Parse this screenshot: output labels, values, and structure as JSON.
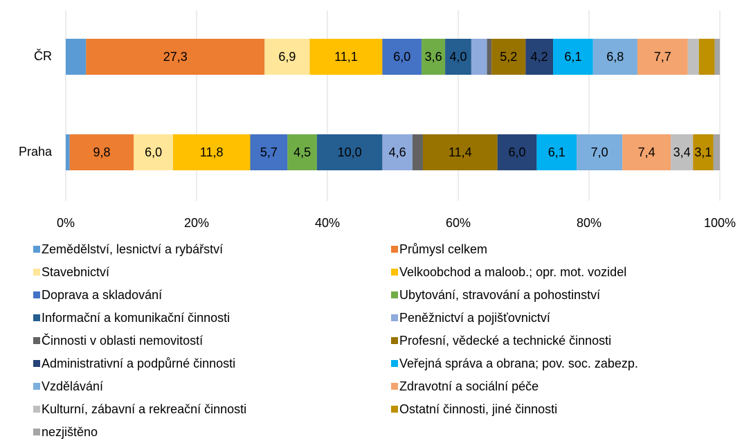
{
  "chart_data": {
    "type": "stacked_barh",
    "categories": [
      "ČR",
      "Praha"
    ],
    "series": [
      {
        "name": "Zemědělství, lesnictví a rybářství",
        "color": "#5b9bd5",
        "values": [
          3.1,
          0.6
        ],
        "value_labels": [
          null,
          null
        ]
      },
      {
        "name": "Průmysl celkem",
        "color": "#ed7d31",
        "values": [
          27.3,
          9.8
        ],
        "value_labels": [
          "27,3",
          "9,8"
        ]
      },
      {
        "name": "Stavebnictví",
        "color": "#ffe699",
        "values": [
          6.9,
          6.0
        ],
        "value_labels": [
          "6,9",
          "6,0"
        ]
      },
      {
        "name": "Velkoobchod a maloob.; opr. mot. vozidel",
        "color": "#ffc000",
        "values": [
          11.1,
          11.8
        ],
        "value_labels": [
          "11,1",
          "11,8"
        ]
      },
      {
        "name": "Doprava a skladování",
        "color": "#4472c4",
        "values": [
          6.0,
          5.7
        ],
        "value_labels": [
          "6,0",
          "5,7"
        ]
      },
      {
        "name": "Ubytování, stravování a pohostinství",
        "color": "#70ad47",
        "values": [
          3.6,
          4.5
        ],
        "value_labels": [
          "3,6",
          "4,5"
        ]
      },
      {
        "name": "Informační a komunikační činnosti",
        "color": "#255e91",
        "values": [
          4.0,
          10.0
        ],
        "value_labels": [
          "4,0",
          "10,0"
        ]
      },
      {
        "name": "Peněžnictví a pojišťovnictví",
        "color": "#8faadc",
        "values": [
          2.4,
          4.6
        ],
        "value_labels": [
          null,
          "4,6"
        ]
      },
      {
        "name": "Činnosti v oblasti nemovitostí",
        "color": "#636363",
        "values": [
          0.7,
          1.6
        ],
        "value_labels": [
          null,
          null
        ]
      },
      {
        "name": "Profesní, vědecké a technické činnosti",
        "color": "#997300",
        "values": [
          5.2,
          11.4
        ],
        "value_labels": [
          "5,2",
          "11,4"
        ]
      },
      {
        "name": "Administrativní a podpůrné činnosti",
        "color": "#264478",
        "values": [
          4.2,
          6.0
        ],
        "value_labels": [
          "4,2",
          "6,0"
        ]
      },
      {
        "name": "Veřejná správa a obrana; pov. soc. zabezp.",
        "color": "#00b0f0",
        "values": [
          6.1,
          6.1
        ],
        "value_labels": [
          "6,1",
          "6,1"
        ]
      },
      {
        "name": "Vzdělávání",
        "color": "#7cafdd",
        "values": [
          6.8,
          7.0
        ],
        "value_labels": [
          "6,8",
          "7,0"
        ]
      },
      {
        "name": "Zdravotní a sociální péče",
        "color": "#f4a46e",
        "values": [
          7.7,
          7.4
        ],
        "value_labels": [
          "7,7",
          "7,4"
        ]
      },
      {
        "name": "Kulturní, zábavní a rekreační činnosti",
        "color": "#bfbfbf",
        "values": [
          1.7,
          3.4
        ],
        "value_labels": [
          null,
          "3,4"
        ]
      },
      {
        "name": "Ostatní činnosti, jiné činnosti",
        "color": "#bf9000",
        "values": [
          2.4,
          3.1
        ],
        "value_labels": [
          null,
          "3,1"
        ]
      },
      {
        "name": "nezjištěno",
        "color": "#a5a5a5",
        "values": [
          0.8,
          1.0
        ],
        "value_labels": [
          null,
          null
        ]
      }
    ],
    "xlim": [
      0,
      100
    ],
    "xticks": [
      {
        "value": 0,
        "label": "0%"
      },
      {
        "value": 20,
        "label": "20%"
      },
      {
        "value": 40,
        "label": "40%"
      },
      {
        "value": 60,
        "label": "60%"
      },
      {
        "value": 80,
        "label": "80%"
      },
      {
        "value": 100,
        "label": "100%"
      }
    ],
    "grid": true
  }
}
